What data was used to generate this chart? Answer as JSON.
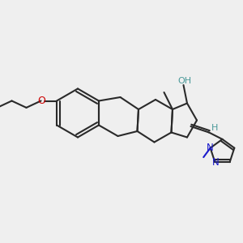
{
  "bg_color": "#efefef",
  "bond_color": "#2a2a2a",
  "O_color": "#cc0000",
  "OH_color": "#4a9999",
  "N_color": "#1a1acc",
  "lw": 1.5,
  "figsize": [
    3.0,
    3.0
  ],
  "dpi": 100,
  "xlim": [
    0,
    10
  ],
  "ylim": [
    0,
    10
  ]
}
